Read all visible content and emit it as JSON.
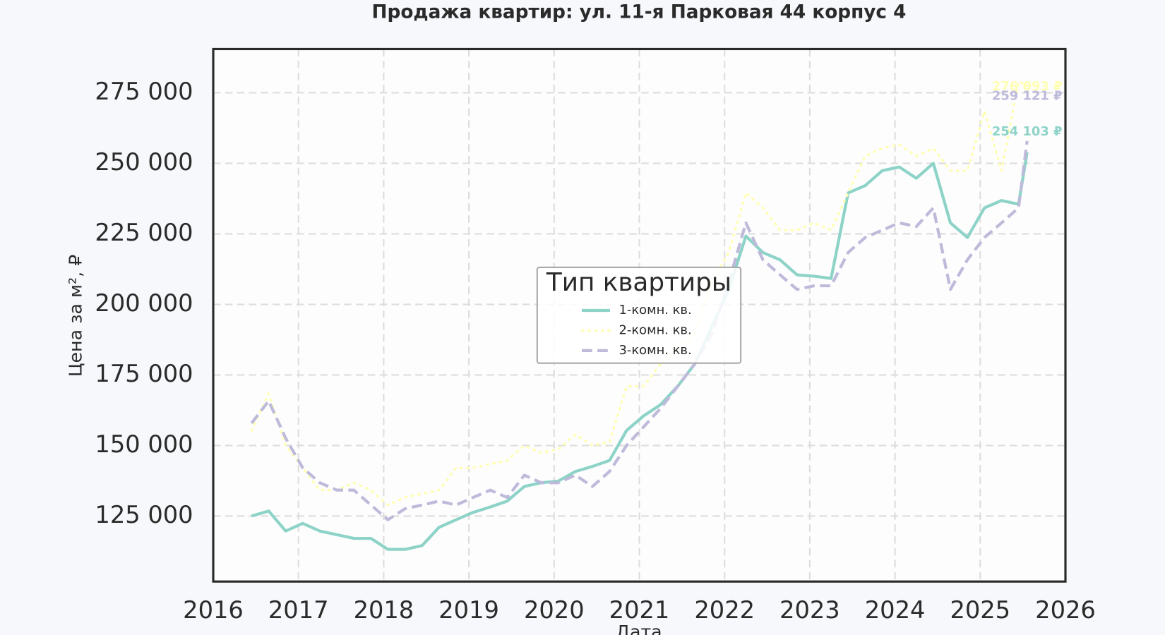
{
  "chart_data": {
    "type": "line",
    "title": "Продажа квартир: ул. 11-я Парковая 44 корпус 4",
    "x_label": "Дата",
    "y_label": "Цена за м², ₽",
    "legend_title": "Тип квартиры",
    "legend_position": "center",
    "grid": true,
    "xlim": [
      2016,
      2026
    ],
    "xticks": [
      2016,
      2017,
      2018,
      2019,
      2020,
      2021,
      2022,
      2023,
      2024,
      2025,
      2026
    ],
    "ylim": [
      101800,
      290500
    ],
    "yticks": [
      {
        "value": 125000,
        "label": "125 000"
      },
      {
        "value": 150000,
        "label": "150 000"
      },
      {
        "value": 175000,
        "label": "175 000"
      },
      {
        "value": 200000,
        "label": "200 000"
      },
      {
        "value": 225000,
        "label": "225 000"
      },
      {
        "value": 250000,
        "label": "250 000"
      },
      {
        "value": 275000,
        "label": "275 000"
      }
    ],
    "x": [
      2016.45,
      2016.65,
      2016.85,
      2017.05,
      2017.25,
      2017.45,
      2017.65,
      2017.85,
      2018.05,
      2018.25,
      2018.45,
      2018.65,
      2018.85,
      2019.05,
      2019.25,
      2019.45,
      2019.65,
      2019.85,
      2020.05,
      2020.25,
      2020.45,
      2020.65,
      2020.85,
      2021.05,
      2021.25,
      2021.45,
      2021.65,
      2021.85,
      2022.05,
      2022.25,
      2022.45,
      2022.65,
      2022.85,
      2023.05,
      2023.25,
      2023.45,
      2023.65,
      2023.85,
      2024.05,
      2024.25,
      2024.45,
      2024.65,
      2024.85,
      2025.05,
      2025.25,
      2025.45,
      2025.55
    ],
    "series": [
      {
        "name": "1-комн. кв.",
        "color": "#8dd3c7",
        "linestyle": "solid",
        "values": [
          125000,
          126800,
          119700,
          122400,
          119700,
          118400,
          117100,
          117100,
          113200,
          113200,
          114500,
          121000,
          123700,
          126300,
          128200,
          130300,
          135500,
          136800,
          137400,
          140800,
          142600,
          144700,
          155300,
          160500,
          164500,
          171000,
          178900,
          192100,
          205300,
          224200,
          218400,
          215800,
          210500,
          210000,
          209200,
          239500,
          242100,
          247400,
          248700,
          244700,
          250000,
          228900,
          223700,
          234200,
          236800,
          235500,
          253900
        ]
      },
      {
        "name": "2-комн. кв.",
        "color": "#ffffb3",
        "linestyle": "dotted",
        "values": [
          155300,
          168400,
          150000,
          142100,
          134200,
          134200,
          136800,
          134200,
          128900,
          131600,
          132900,
          134200,
          142100,
          142100,
          143400,
          144700,
          150000,
          147400,
          148700,
          153900,
          150000,
          151300,
          171000,
          171000,
          178900,
          184200,
          189500,
          207900,
          218400,
          239500,
          234200,
          226300,
          226300,
          228900,
          226300,
          239500,
          252600,
          255300,
          256600,
          252600,
          255300,
          247400,
          247400,
          268400,
          247400,
          279000,
          277600
        ]
      },
      {
        "name": "3-комн. кв.",
        "color": "#bebada",
        "linestyle": "dashed",
        "values": [
          157900,
          165800,
          152600,
          142100,
          136800,
          134200,
          134200,
          128900,
          123700,
          127600,
          128900,
          130300,
          128900,
          131600,
          134200,
          131600,
          139500,
          136800,
          136800,
          139500,
          135500,
          140800,
          150000,
          156600,
          163200,
          171000,
          178900,
          189500,
          207900,
          228900,
          215800,
          210500,
          205300,
          206600,
          206600,
          218400,
          223700,
          226300,
          228900,
          227600,
          234200,
          205300,
          215800,
          223700,
          228900,
          234200,
          257900
        ]
      }
    ],
    "annotations": [
      {
        "text": "276 093 ₽",
        "x": 2025.55,
        "y": 277100,
        "color": "#ffffb3"
      },
      {
        "text": "259 121 ₽",
        "x": 2025.55,
        "y": 273700,
        "color": "#bebada"
      },
      {
        "text": "254 103 ₽",
        "x": 2025.55,
        "y": 261100,
        "color": "#8dd3c7"
      }
    ]
  }
}
